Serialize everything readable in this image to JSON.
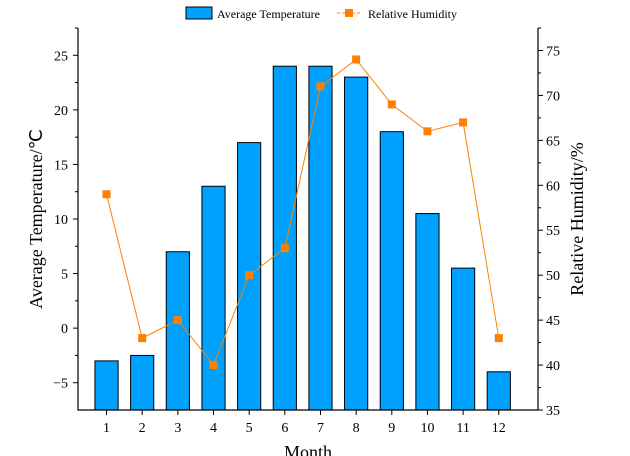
{
  "chart_data": {
    "type": "bar+line",
    "xlabel": "Month",
    "ylabel_left": "Average Temperature/℃",
    "ylabel_right": "Relative Humidity/%",
    "categories": [
      "1",
      "2",
      "3",
      "4",
      "5",
      "6",
      "7",
      "8",
      "9",
      "10",
      "11",
      "12"
    ],
    "ylim_left": [
      -7.5,
      27.5
    ],
    "ylim_right": [
      35,
      77.5
    ],
    "yticks_left": [
      -5,
      0,
      5,
      10,
      15,
      20,
      25
    ],
    "yticks_right": [
      35,
      40,
      45,
      50,
      55,
      60,
      65,
      70,
      75
    ],
    "legend_placement": "top",
    "series": [
      {
        "name": "Average Temperature",
        "type": "bar",
        "axis": "left",
        "color": "#00a0ff",
        "values": [
          -3,
          -2.5,
          7,
          13,
          17,
          24,
          24,
          23,
          18,
          10.5,
          5.5,
          -4
        ]
      },
      {
        "name": "Relative Humidity",
        "type": "line",
        "axis": "right",
        "color": "#ff8000",
        "values": [
          59,
          43,
          45,
          40,
          50,
          53,
          71,
          74,
          69,
          66,
          67,
          43
        ]
      }
    ]
  }
}
